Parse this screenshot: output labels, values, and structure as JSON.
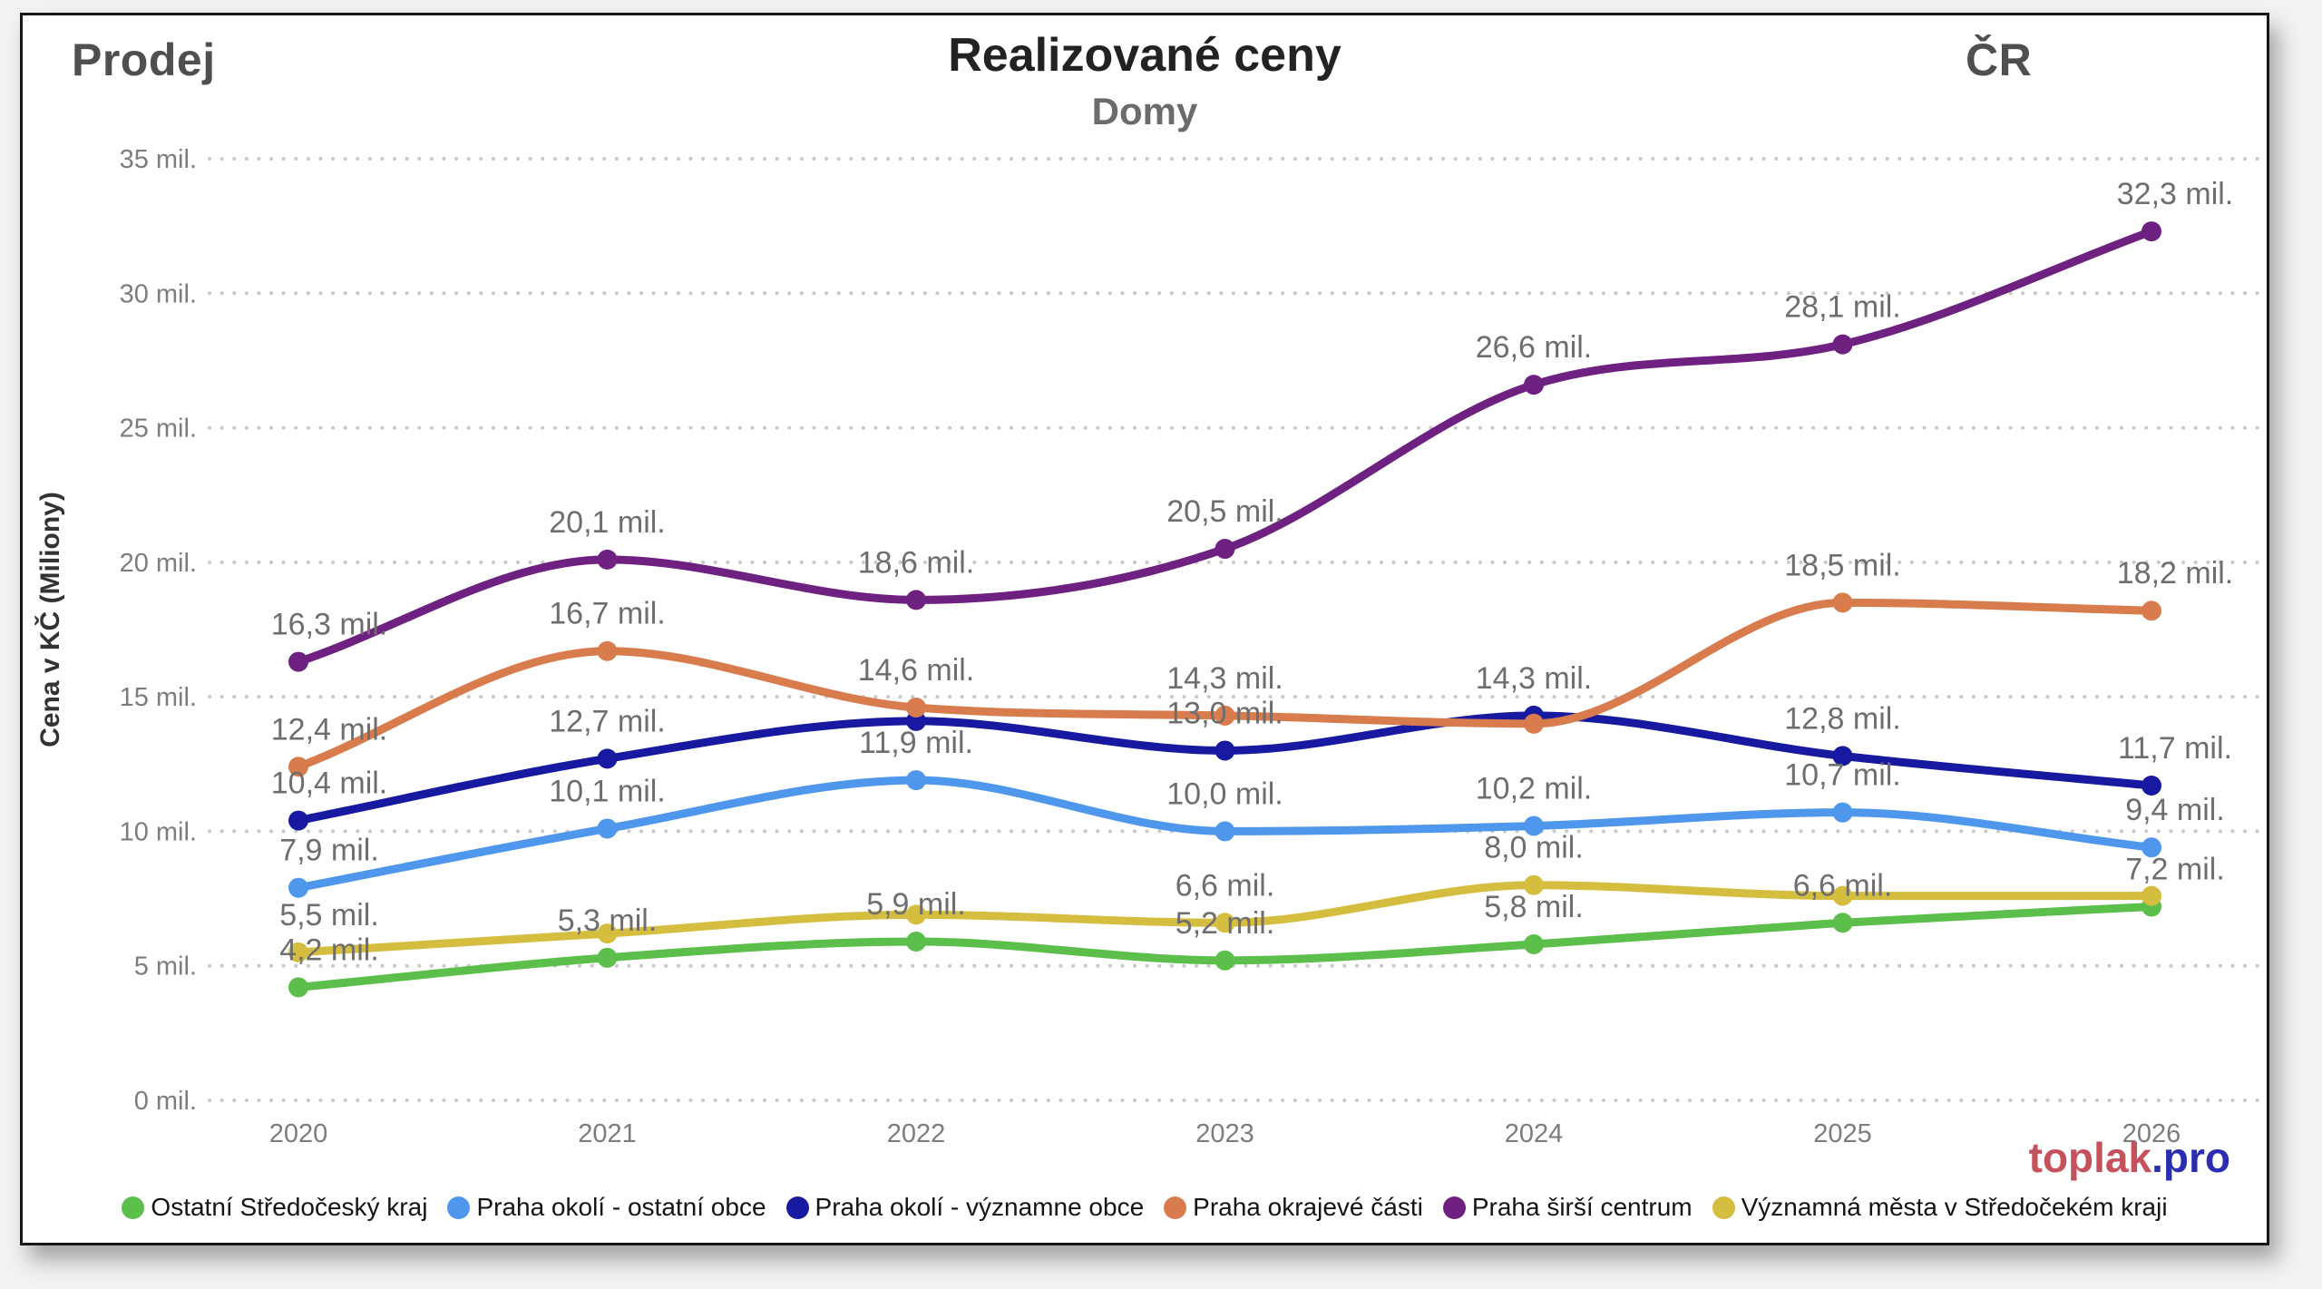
{
  "header": {
    "left_label": "Prodej",
    "title": "Realizované ceny",
    "subtitle": "Domy",
    "right_label": "ČR"
  },
  "watermark": {
    "text_primary": "toplak",
    "text_secondary": ".pro",
    "color_primary": "#C4515C",
    "color_secondary": "#2A2DB1"
  },
  "chart_data": {
    "type": "line",
    "title": "Realizované ceny",
    "subtitle": "Domy",
    "corner_left": "Prodej",
    "corner_right": "ČR",
    "ylabel": "Cena v KČ (Miliony)",
    "x_categories": [
      "2020",
      "2021",
      "2022",
      "2023",
      "2024",
      "2025",
      "2026"
    ],
    "ylim": [
      0,
      35
    ],
    "y_tick_labels": [
      "0 mil.",
      "5 mil.",
      "10 mil.",
      "15 mil.",
      "20 mil.",
      "25 mil.",
      "30 mil.",
      "35 mil."
    ],
    "y_tick_values": [
      0,
      5,
      10,
      15,
      20,
      25,
      30,
      35
    ],
    "grid": "dotted-horizontal",
    "legend_position": "bottom",
    "grid_color": "#c9c9c9",
    "label_color": "#6e6e6e",
    "series": [
      {
        "name": "Ostatní Středočeský kraj",
        "color": "#5CBE4B",
        "values": [
          4.2,
          5.3,
          5.9,
          5.2,
          5.8,
          6.6,
          7.2
        ],
        "labels": [
          "4,2 mil.",
          "5,3 mil.",
          "5,9 mil.",
          "5,2 mil.",
          "5,8 mil.",
          "6,6 mil.",
          "7,2 mil."
        ]
      },
      {
        "name": "Praha okolí - ostatní obce",
        "color": "#4E97EC",
        "values": [
          7.9,
          10.1,
          11.9,
          10.0,
          10.2,
          10.7,
          9.4
        ],
        "labels": [
          "7,9 mil.",
          "10,1 mil.",
          "11,9 mil.",
          "10,0 mil.",
          "10,2 mil.",
          "10,7 mil.",
          "9,4 mil."
        ]
      },
      {
        "name": "Praha okolí - významne obce",
        "color": "#171AA0",
        "values": [
          10.4,
          12.7,
          14.1,
          13.0,
          14.3,
          12.8,
          11.7
        ],
        "labels": [
          "10,4 mil.",
          "12,7 mil.",
          null,
          "13,0 mil.",
          "14,3 mil.",
          "12,8 mil.",
          "11,7 mil."
        ]
      },
      {
        "name": "Praha okrajevé části",
        "color": "#D87C4D",
        "values": [
          12.4,
          16.7,
          14.6,
          14.3,
          14.0,
          18.5,
          18.2
        ],
        "labels": [
          "12,4 mil.",
          "16,7 mil.",
          "14,6 mil.",
          "14,3 mil.",
          null,
          "18,5 mil.",
          "18,2 mil."
        ]
      },
      {
        "name": "Praha širší centrum",
        "color": "#6E2180",
        "values": [
          16.3,
          20.1,
          18.6,
          20.5,
          26.6,
          28.1,
          32.3
        ],
        "labels": [
          "16,3 mil.",
          "20,1 mil.",
          "18,6 mil.",
          "20,5 mil.",
          "26,6 mil.",
          "28,1 mil.",
          "32,3 mil."
        ]
      },
      {
        "name": "Významná města v Středočekém kraji",
        "color": "#D5BD3F",
        "values": [
          5.5,
          6.2,
          6.9,
          6.6,
          8.0,
          7.6,
          7.6
        ],
        "labels": [
          "5,5 mil.",
          null,
          null,
          "6,6 mil.",
          "8,0 mil.",
          null,
          null
        ]
      }
    ]
  }
}
